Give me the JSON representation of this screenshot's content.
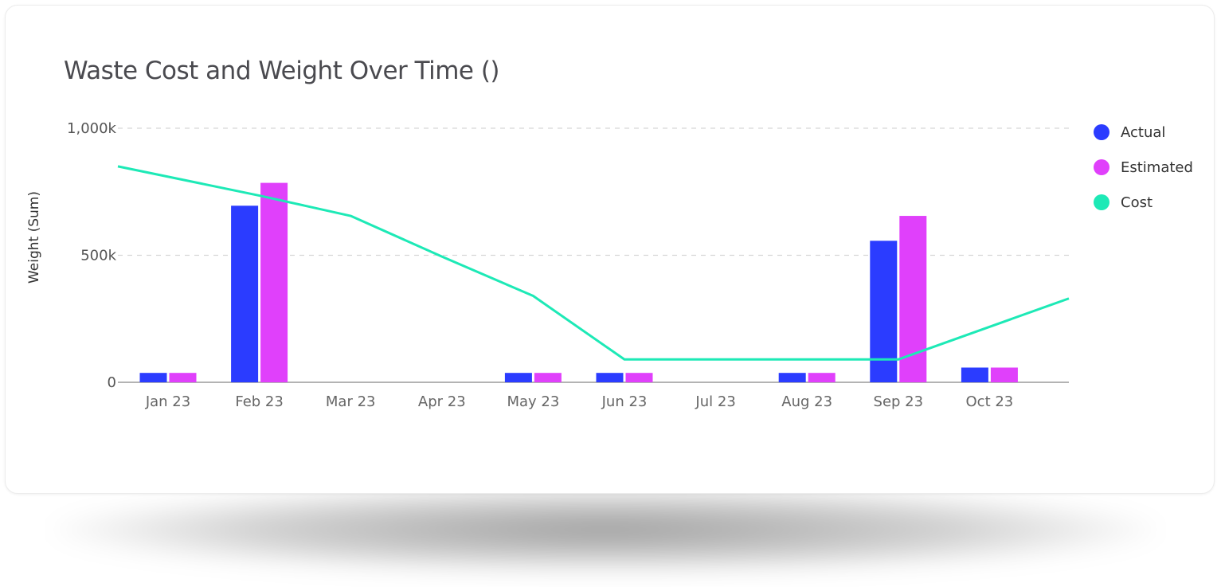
{
  "chart_data": {
    "type": "bar",
    "title": "Waste Cost and Weight Over Time ()",
    "ylabel": "Weight (Sum)",
    "xlabel": "",
    "ylim": [
      0,
      1000000
    ],
    "yticks": [
      0,
      500000,
      1000000
    ],
    "ytick_labels": [
      "0",
      "500k",
      "1,000k"
    ],
    "grid": true,
    "legend_position": "right",
    "categories": [
      "Jan 23",
      "Feb 23",
      "Mar 23",
      "Apr 23",
      "May 23",
      "Jun 23",
      "Jul 23",
      "Aug 23",
      "Sep 23",
      "Oct 23"
    ],
    "series": [
      {
        "name": "Actual",
        "type": "bar",
        "color": "#2b3cff",
        "values": [
          37000,
          695000,
          0,
          0,
          37000,
          37000,
          0,
          37000,
          557000,
          58000
        ]
      },
      {
        "name": "Estimated",
        "type": "bar",
        "color": "#e040fb",
        "values": [
          37000,
          785000,
          0,
          0,
          37000,
          37000,
          0,
          37000,
          655000,
          58000
        ]
      },
      {
        "name": "Cost",
        "type": "line",
        "color": "#1de9b6",
        "values": [
          850000,
          735000,
          655000,
          495000,
          340000,
          90000,
          90000,
          90000,
          90000,
          330000
        ]
      }
    ]
  }
}
